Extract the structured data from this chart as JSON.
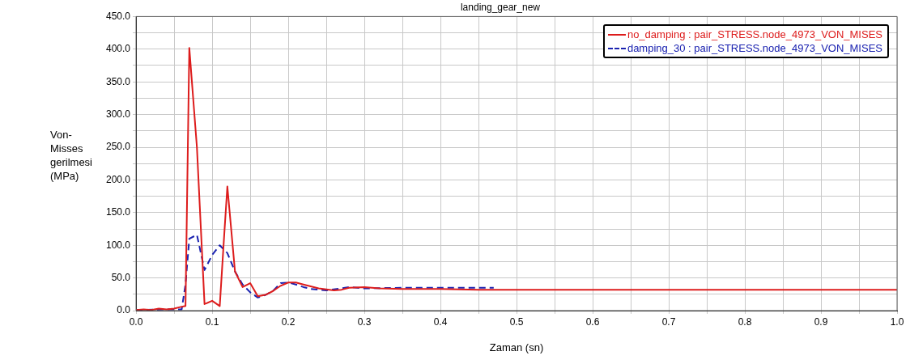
{
  "chart_data": {
    "type": "line",
    "title": "landing_gear_new",
    "xlabel": "Zaman (sn)",
    "ylabel": "Von-Misses gerilmesi (MPa)",
    "xlim": [
      0,
      1
    ],
    "ylim": [
      0,
      450
    ],
    "xticks": [
      {
        "value": 0,
        "label": "0.0"
      },
      {
        "value": 0.05,
        "label": null
      },
      {
        "value": 0.1,
        "label": "0.1"
      },
      {
        "value": 0.15,
        "label": null
      },
      {
        "value": 0.2,
        "label": "0.2"
      },
      {
        "value": 0.25,
        "label": null
      },
      {
        "value": 0.3,
        "label": "0.3"
      },
      {
        "value": 0.35,
        "label": null
      },
      {
        "value": 0.4,
        "label": "0.4"
      },
      {
        "value": 0.45,
        "label": null
      },
      {
        "value": 0.5,
        "label": "0.5"
      },
      {
        "value": 0.55,
        "label": null
      },
      {
        "value": 0.6,
        "label": "0.6"
      },
      {
        "value": 0.65,
        "label": null
      },
      {
        "value": 0.7,
        "label": "0.7"
      },
      {
        "value": 0.75,
        "label": null
      },
      {
        "value": 0.8,
        "label": "0.8"
      },
      {
        "value": 0.85,
        "label": null
      },
      {
        "value": 0.9,
        "label": "0.9"
      },
      {
        "value": 0.95,
        "label": null
      },
      {
        "value": 1,
        "label": "1.0"
      }
    ],
    "yticks": [
      {
        "value": 0,
        "label": "0.0"
      },
      {
        "value": 25,
        "label": null
      },
      {
        "value": 50,
        "label": "50.0"
      },
      {
        "value": 75,
        "label": null
      },
      {
        "value": 100,
        "label": "100.0"
      },
      {
        "value": 125,
        "label": null
      },
      {
        "value": 150,
        "label": "150.0"
      },
      {
        "value": 175,
        "label": null
      },
      {
        "value": 200,
        "label": "200.0"
      },
      {
        "value": 225,
        "label": null
      },
      {
        "value": 250,
        "label": "250.0"
      },
      {
        "value": 275,
        "label": null
      },
      {
        "value": 300,
        "label": "300.0"
      },
      {
        "value": 325,
        "label": null
      },
      {
        "value": 350,
        "label": "350.0"
      },
      {
        "value": 375,
        "label": null
      },
      {
        "value": 400,
        "label": "400.0"
      },
      {
        "value": 425,
        "label": null
      },
      {
        "value": 450,
        "label": "450.0"
      }
    ],
    "grid": true,
    "legend": "top right",
    "marker": "none",
    "series": [
      {
        "name": "no_damping : pair_STRESS.node_4973_VON_MISES",
        "color": "#dd1c1c",
        "line_style": "solid",
        "x": [
          0,
          0.01,
          0.02,
          0.03,
          0.04,
          0.05,
          0.06,
          0.065,
          0.07,
          0.08,
          0.09,
          0.1,
          0.11,
          0.115,
          0.12,
          0.13,
          0.14,
          0.15,
          0.16,
          0.17,
          0.18,
          0.19,
          0.2,
          0.21,
          0.22,
          0.24,
          0.26,
          0.27,
          0.28,
          0.3,
          0.32,
          0.35,
          0.4,
          0.45,
          0.5,
          0.6,
          0.7,
          0.8,
          0.9,
          1
        ],
        "values": [
          1,
          2,
          1,
          3,
          2,
          3,
          6,
          7,
          402,
          250,
          10,
          15,
          7,
          100,
          190,
          60,
          36,
          42,
          22,
          24,
          30,
          38,
          43,
          43,
          40,
          34,
          31,
          32,
          35,
          36,
          34,
          33,
          33,
          32,
          32,
          32,
          32,
          32,
          32,
          32
        ]
      },
      {
        "name": "damping_30 : pair_STRESS.node_4973_VON_MISES",
        "color": "#1a22b0",
        "line_style": "dashed",
        "x": [
          0,
          0.05,
          0.06,
          0.065,
          0.07,
          0.08,
          0.09,
          0.1,
          0.11,
          0.12,
          0.13,
          0.14,
          0.15,
          0.16,
          0.17,
          0.18,
          0.19,
          0.2,
          0.21,
          0.22,
          0.23,
          0.25,
          0.27,
          0.28,
          0.3,
          0.35,
          0.4,
          0.47
        ],
        "values": [
          1,
          2,
          2,
          40,
          110,
          116,
          62,
          85,
          100,
          88,
          60,
          40,
          28,
          20,
          24,
          30,
          42,
          43,
          40,
          36,
          33,
          31,
          34,
          36,
          34,
          35,
          35,
          35
        ]
      }
    ]
  }
}
